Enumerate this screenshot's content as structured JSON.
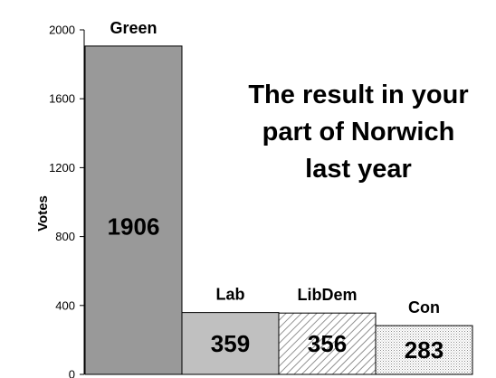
{
  "chart_data": {
    "type": "bar",
    "title_lines": [
      "The result in your",
      "part of Norwich",
      "last year"
    ],
    "ylabel": "Votes",
    "xlabel": "",
    "ylim": [
      0,
      2000
    ],
    "yticks": [
      "0",
      "400",
      "800",
      "1200",
      "1600",
      "2000"
    ],
    "categories": [
      "Green",
      "Lab",
      "LibDem",
      "Con"
    ],
    "values": [
      1906,
      359,
      356,
      283
    ],
    "value_labels": [
      "1906",
      "359",
      "356",
      "283"
    ],
    "bar_fills": [
      "#999999",
      "#c0c0c0",
      "hatch",
      "dots"
    ],
    "grid": false,
    "legend": "none"
  }
}
